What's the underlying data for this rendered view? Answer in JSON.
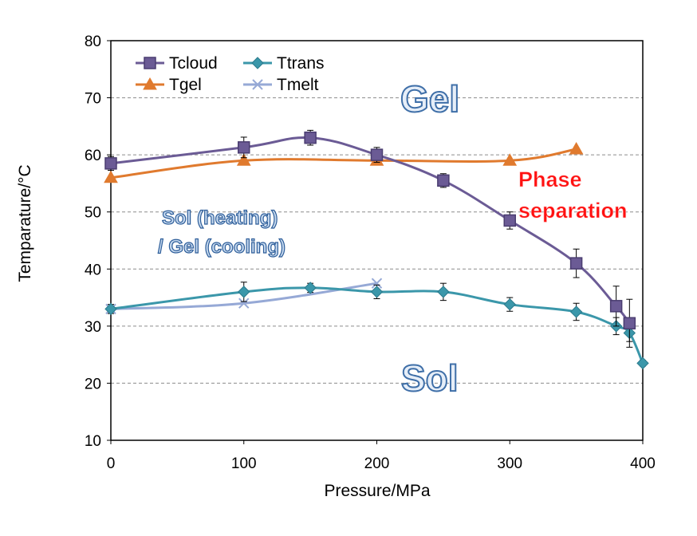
{
  "chart_data": {
    "type": "line",
    "title": "",
    "xlabel": "Pressure/MPa",
    "ylabel": "Temparature/°C",
    "xlim": [
      0,
      400
    ],
    "ylim": [
      10,
      80
    ],
    "xticks": [
      "0",
      "100",
      "200",
      "300",
      "400"
    ],
    "yticks": [
      "10",
      "20",
      "30",
      "40",
      "50",
      "60",
      "70",
      "80"
    ],
    "grid": "horizontal-dashed",
    "legend_position": "top-left",
    "series": [
      {
        "name": "Tcloud",
        "color": "#6b5b95",
        "marker": "square",
        "x": [
          0,
          100,
          150,
          200,
          250,
          300,
          350,
          380,
          390
        ],
        "y": [
          58.5,
          61.3,
          63,
          60,
          55.5,
          48.5,
          41,
          33.5,
          30.5
        ],
        "error": [
          1.2,
          1.8,
          1.3,
          1.3,
          1.2,
          1.5,
          2.5,
          3.5,
          4.2
        ]
      },
      {
        "name": "Ttrans",
        "color": "#3b97aa",
        "marker": "diamond",
        "x": [
          0,
          100,
          150,
          200,
          250,
          300,
          350,
          380,
          390,
          400
        ],
        "y": [
          33,
          36,
          36.7,
          36,
          36,
          33.8,
          32.5,
          30,
          28.8,
          23.5
        ],
        "error": [
          0.8,
          1.7,
          0.8,
          1.2,
          1.5,
          1.2,
          1.5,
          1.5,
          1.5,
          0.5
        ]
      },
      {
        "name": "Tgel",
        "color": "#e07a2e",
        "marker": "triangle",
        "x": [
          0,
          100,
          200,
          300,
          350
        ],
        "y": [
          56,
          59,
          59,
          59,
          61
        ]
      },
      {
        "name": "Tmelt",
        "color": "#96a9d6",
        "marker": "x",
        "x": [
          0,
          100,
          200
        ],
        "y": [
          33,
          34,
          37.5
        ]
      }
    ],
    "annotations": {
      "gel": "Gel",
      "sol": "Sol",
      "sol_gel_line1": "Sol (heating)",
      "sol_gel_line2": "/ Gel (cooling)",
      "phase_line1": "Phase",
      "phase_line2": "separation"
    }
  }
}
